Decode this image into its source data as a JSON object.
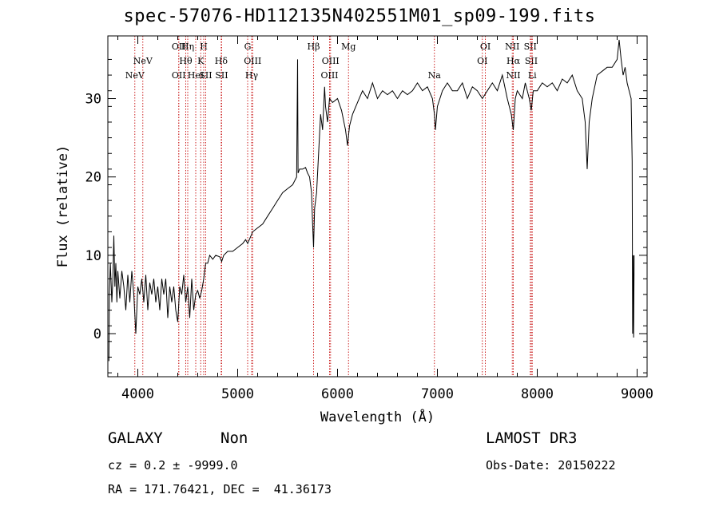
{
  "header": {
    "title": "spec-57076-HD112135N402551M01_sp09-199.fits"
  },
  "footer": {
    "object_class": "GALAXY",
    "subclass": "Non",
    "survey": "LAMOST DR3",
    "redshift": "cz = 0.2 ± -9999.0",
    "obs_date": "Obs-Date: 20150222",
    "coords": "RA = 171.76421, DEC =  41.36173"
  },
  "chart_data": {
    "type": "line",
    "title": "spec-57076-HD112135N402551M01_sp09-199.fits",
    "xlabel": "Wavelength (Å)",
    "ylabel": "Flux (relative)",
    "xlim": [
      3700,
      9100
    ],
    "ylim": [
      -5.5,
      38
    ],
    "xticks": [
      4000,
      5000,
      6000,
      7000,
      8000,
      9000
    ],
    "yticks": [
      0,
      10,
      20,
      30
    ],
    "line_color": "#000000",
    "marker_color": "#cc2222",
    "series": [
      {
        "points": [
          [
            3710,
            -3.5
          ],
          [
            3715,
            5
          ],
          [
            3725,
            9
          ],
          [
            3740,
            4
          ],
          [
            3750,
            7
          ],
          [
            3760,
            12.5
          ],
          [
            3770,
            6
          ],
          [
            3780,
            9
          ],
          [
            3790,
            4
          ],
          [
            3800,
            8
          ],
          [
            3820,
            4.5
          ],
          [
            3840,
            8
          ],
          [
            3860,
            6
          ],
          [
            3880,
            3
          ],
          [
            3900,
            7.5
          ],
          [
            3920,
            4
          ],
          [
            3940,
            8
          ],
          [
            3960,
            5
          ],
          [
            3980,
            0
          ],
          [
            4000,
            6
          ],
          [
            4020,
            5
          ],
          [
            4040,
            7
          ],
          [
            4060,
            4
          ],
          [
            4080,
            7.5
          ],
          [
            4100,
            3
          ],
          [
            4120,
            6.5
          ],
          [
            4140,
            5
          ],
          [
            4160,
            7
          ],
          [
            4180,
            4
          ],
          [
            4200,
            6
          ],
          [
            4220,
            3
          ],
          [
            4240,
            7
          ],
          [
            4260,
            5
          ],
          [
            4280,
            7
          ],
          [
            4300,
            2
          ],
          [
            4320,
            6
          ],
          [
            4340,
            4
          ],
          [
            4360,
            6
          ],
          [
            4380,
            3
          ],
          [
            4400,
            1.5
          ],
          [
            4420,
            6
          ],
          [
            4440,
            5
          ],
          [
            4460,
            7.5
          ],
          [
            4480,
            4
          ],
          [
            4500,
            6
          ],
          [
            4520,
            2
          ],
          [
            4540,
            7
          ],
          [
            4560,
            3
          ],
          [
            4580,
            5
          ],
          [
            4600,
            5.5
          ],
          [
            4620,
            4.5
          ],
          [
            4640,
            5.5
          ],
          [
            4660,
            7
          ],
          [
            4680,
            9
          ],
          [
            4700,
            9
          ],
          [
            4720,
            10
          ],
          [
            4750,
            9.5
          ],
          [
            4780,
            10
          ],
          [
            4820,
            9.8
          ],
          [
            4840,
            9.2
          ],
          [
            4860,
            10
          ],
          [
            4900,
            10.5
          ],
          [
            4950,
            10.5
          ],
          [
            5000,
            11
          ],
          [
            5050,
            11.5
          ],
          [
            5080,
            12
          ],
          [
            5100,
            11.5
          ],
          [
            5150,
            13
          ],
          [
            5200,
            13.5
          ],
          [
            5250,
            14
          ],
          [
            5300,
            15
          ],
          [
            5350,
            16
          ],
          [
            5400,
            17
          ],
          [
            5450,
            18
          ],
          [
            5500,
            18.5
          ],
          [
            5550,
            19
          ],
          [
            5590,
            20
          ],
          [
            5600,
            35
          ],
          [
            5605,
            20.5
          ],
          [
            5620,
            21
          ],
          [
            5650,
            21
          ],
          [
            5680,
            21.2
          ],
          [
            5700,
            20.5
          ],
          [
            5720,
            20
          ],
          [
            5740,
            18
          ],
          [
            5750,
            14
          ],
          [
            5760,
            11
          ],
          [
            5770,
            16
          ],
          [
            5790,
            18
          ],
          [
            5810,
            23
          ],
          [
            5830,
            28
          ],
          [
            5850,
            26
          ],
          [
            5870,
            31.5
          ],
          [
            5880,
            29
          ],
          [
            5900,
            27
          ],
          [
            5920,
            30
          ],
          [
            5950,
            29.5
          ],
          [
            6000,
            30
          ],
          [
            6040,
            28.5
          ],
          [
            6080,
            26
          ],
          [
            6100,
            24
          ],
          [
            6120,
            26.5
          ],
          [
            6150,
            28
          ],
          [
            6200,
            29.5
          ],
          [
            6250,
            31
          ],
          [
            6300,
            30
          ],
          [
            6350,
            32
          ],
          [
            6400,
            30
          ],
          [
            6450,
            31
          ],
          [
            6500,
            30.5
          ],
          [
            6550,
            31
          ],
          [
            6600,
            30
          ],
          [
            6650,
            31
          ],
          [
            6700,
            30.5
          ],
          [
            6750,
            31
          ],
          [
            6800,
            32
          ],
          [
            6850,
            31
          ],
          [
            6900,
            31.5
          ],
          [
            6950,
            30
          ],
          [
            6970,
            28
          ],
          [
            6980,
            26
          ],
          [
            7000,
            29
          ],
          [
            7050,
            31
          ],
          [
            7100,
            32
          ],
          [
            7150,
            31
          ],
          [
            7200,
            31
          ],
          [
            7250,
            32
          ],
          [
            7300,
            30
          ],
          [
            7350,
            31.5
          ],
          [
            7400,
            31
          ],
          [
            7450,
            30
          ],
          [
            7500,
            31
          ],
          [
            7550,
            32
          ],
          [
            7600,
            31
          ],
          [
            7650,
            33
          ],
          [
            7700,
            30
          ],
          [
            7740,
            28
          ],
          [
            7760,
            26
          ],
          [
            7780,
            30
          ],
          [
            7800,
            31
          ],
          [
            7850,
            30
          ],
          [
            7880,
            32
          ],
          [
            7920,
            30
          ],
          [
            7940,
            28.5
          ],
          [
            7960,
            31
          ],
          [
            8000,
            31
          ],
          [
            8050,
            32
          ],
          [
            8100,
            31.5
          ],
          [
            8150,
            32
          ],
          [
            8200,
            31
          ],
          [
            8250,
            32.5
          ],
          [
            8300,
            32
          ],
          [
            8350,
            33
          ],
          [
            8400,
            31
          ],
          [
            8450,
            30
          ],
          [
            8480,
            27
          ],
          [
            8500,
            21
          ],
          [
            8520,
            27
          ],
          [
            8550,
            30
          ],
          [
            8600,
            33
          ],
          [
            8650,
            33.5
          ],
          [
            8700,
            34
          ],
          [
            8750,
            34
          ],
          [
            8800,
            35
          ],
          [
            8820,
            37.5
          ],
          [
            8840,
            35
          ],
          [
            8860,
            33
          ],
          [
            8880,
            34
          ],
          [
            8900,
            32
          ],
          [
            8920,
            31
          ],
          [
            8940,
            30
          ],
          [
            8950,
            22
          ],
          [
            8955,
            0
          ],
          [
            8960,
            10
          ],
          [
            8965,
            -0.5
          ],
          [
            8970,
            10
          ]
        ]
      }
    ],
    "line_markers": [
      {
        "name": "NeV",
        "x": 3970,
        "row": 3
      },
      {
        "name": "NeV",
        "x": 4050,
        "row": 2
      },
      {
        "name": "OII",
        "x": 4410,
        "row": 1
      },
      {
        "name": "OII",
        "x": 4410,
        "row": 3
      },
      {
        "name": "Hη",
        "x": 4500,
        "row": 1
      },
      {
        "name": "Hθ",
        "x": 4480,
        "row": 2
      },
      {
        "name": "HeI",
        "x": 4580,
        "row": 3
      },
      {
        "name": "H",
        "x": 4660,
        "row": 1
      },
      {
        "name": "K",
        "x": 4630,
        "row": 2
      },
      {
        "name": "SII",
        "x": 4680,
        "row": 3
      },
      {
        "name": "Hδ",
        "x": 4835,
        "row": 2
      },
      {
        "name": "SII",
        "x": 4840,
        "row": 3
      },
      {
        "name": "G",
        "x": 5100,
        "row": 1
      },
      {
        "name": "OIII",
        "x": 5150,
        "row": 2
      },
      {
        "name": "Hγ",
        "x": 5140,
        "row": 3
      },
      {
        "name": "Hβ",
        "x": 5760,
        "row": 1
      },
      {
        "name": "OIII",
        "x": 5930,
        "row": 2
      },
      {
        "name": "OIII",
        "x": 5920,
        "row": 3
      },
      {
        "name": "Mg",
        "x": 6110,
        "row": 1
      },
      {
        "name": "Na",
        "x": 6970,
        "row": 3
      },
      {
        "name": "OI",
        "x": 7480,
        "row": 1
      },
      {
        "name": "OI",
        "x": 7450,
        "row": 2
      },
      {
        "name": "NII",
        "x": 7750,
        "row": 1
      },
      {
        "name": "Hα",
        "x": 7760,
        "row": 2
      },
      {
        "name": "NII",
        "x": 7760,
        "row": 3
      },
      {
        "name": "SII",
        "x": 7930,
        "row": 1
      },
      {
        "name": "SII",
        "x": 7940,
        "row": 2
      },
      {
        "name": "Li",
        "x": 7950,
        "row": 3
      }
    ]
  }
}
